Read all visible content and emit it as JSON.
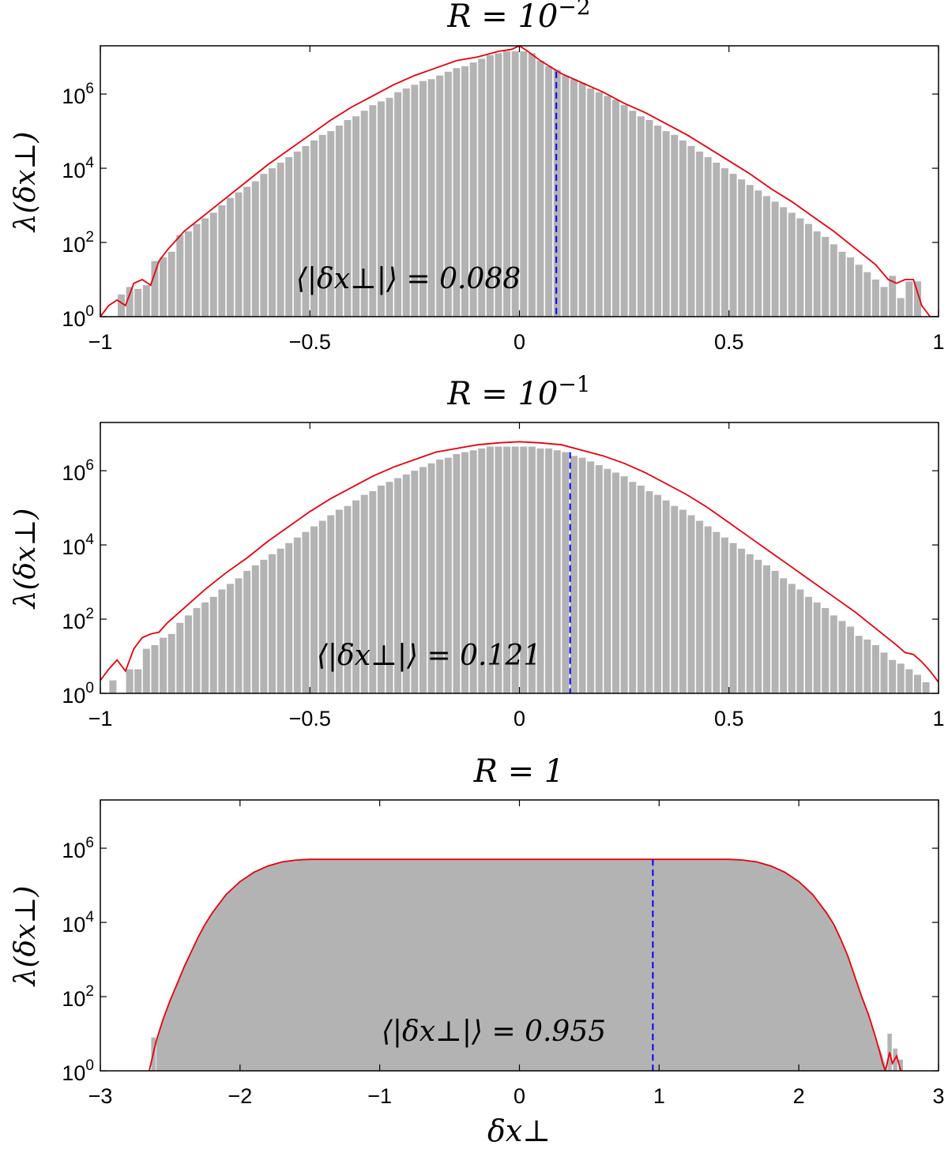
{
  "figure": {
    "xlabel": "δx⊥"
  },
  "chart_data": [
    {
      "type": "bar",
      "title": "R = 10⁻²",
      "title_prefix": "R = 10",
      "title_exp": "−2",
      "ylabel": "λ(δx⊥)",
      "yscale": "log",
      "xlim": [
        -1,
        1
      ],
      "ylim_log10": [
        0,
        7.3
      ],
      "x_ticks": [
        "−1",
        "−0.5",
        "0",
        "0.5",
        "1"
      ],
      "x_tick_values": [
        -1,
        -0.5,
        0,
        0.5,
        1
      ],
      "y_ticks": [
        {
          "base": "10",
          "exp": "0",
          "value": 1
        },
        {
          "base": "10",
          "exp": "2",
          "value": 100
        },
        {
          "base": "10",
          "exp": "4",
          "value": 10000
        },
        {
          "base": "10",
          "exp": "6",
          "value": 1000000
        }
      ],
      "annotation": "⟨|δx⊥|⟩ = 0.088",
      "annotation_value": 0.088,
      "mean_line_x": 0.088,
      "mean_line_top_log10": 6.6,
      "series": [
        {
          "name": "histogram",
          "kind": "bars",
          "color": "#b3b3b3",
          "bin_width": 0.02,
          "x": [
            -0.95,
            -0.93,
            -0.91,
            -0.89,
            -0.87,
            -0.85,
            -0.83,
            -0.81,
            -0.79,
            -0.77,
            -0.75,
            -0.73,
            -0.71,
            -0.69,
            -0.67,
            -0.65,
            -0.63,
            -0.61,
            -0.59,
            -0.57,
            -0.55,
            -0.53,
            -0.51,
            -0.49,
            -0.47,
            -0.45,
            -0.43,
            -0.41,
            -0.39,
            -0.37,
            -0.35,
            -0.33,
            -0.31,
            -0.29,
            -0.27,
            -0.25,
            -0.23,
            -0.21,
            -0.19,
            -0.17,
            -0.15,
            -0.13,
            -0.11,
            -0.09,
            -0.07,
            -0.05,
            -0.03,
            -0.01,
            0.01,
            0.03,
            0.05,
            0.07,
            0.09,
            0.11,
            0.13,
            0.15,
            0.17,
            0.19,
            0.21,
            0.23,
            0.25,
            0.27,
            0.29,
            0.31,
            0.33,
            0.35,
            0.37,
            0.39,
            0.41,
            0.43,
            0.45,
            0.47,
            0.49,
            0.51,
            0.53,
            0.55,
            0.57,
            0.59,
            0.61,
            0.63,
            0.65,
            0.67,
            0.69,
            0.71,
            0.73,
            0.75,
            0.77,
            0.79,
            0.81,
            0.83,
            0.85,
            0.87,
            0.89,
            0.91,
            0.93,
            0.95
          ],
          "log10_values": [
            0.6,
            0.8,
            0.75,
            0.85,
            1.5,
            1.6,
            1.75,
            2.2,
            2.3,
            2.5,
            2.65,
            2.8,
            3.0,
            3.2,
            3.35,
            3.5,
            3.65,
            3.85,
            4.0,
            4.15,
            4.3,
            4.45,
            4.6,
            4.75,
            4.9,
            5.0,
            5.15,
            5.3,
            5.4,
            5.55,
            5.7,
            5.8,
            5.9,
            6.05,
            6.15,
            6.25,
            6.35,
            6.4,
            6.5,
            6.6,
            6.7,
            6.75,
            6.85,
            6.95,
            7.05,
            7.1,
            7.15,
            7.15,
            7.15,
            7.1,
            6.9,
            6.75,
            6.65,
            6.5,
            6.4,
            6.3,
            6.15,
            6.05,
            5.95,
            5.85,
            5.7,
            5.55,
            5.4,
            5.3,
            5.15,
            5.0,
            4.9,
            4.75,
            4.6,
            4.45,
            4.3,
            4.15,
            4.0,
            3.85,
            3.7,
            3.55,
            3.4,
            3.25,
            3.1,
            2.95,
            2.8,
            2.65,
            2.5,
            2.3,
            2.15,
            1.95,
            1.75,
            1.6,
            1.4,
            1.2,
            1.0,
            0.8,
            1.1,
            0.5,
            0.95,
            0.95
          ]
        },
        {
          "name": "fit",
          "kind": "line",
          "color": "#e8000b",
          "x": [
            -1.0,
            -0.98,
            -0.96,
            -0.94,
            -0.92,
            -0.9,
            -0.88,
            -0.86,
            -0.84,
            -0.8,
            -0.75,
            -0.7,
            -0.65,
            -0.6,
            -0.55,
            -0.5,
            -0.45,
            -0.4,
            -0.35,
            -0.3,
            -0.25,
            -0.2,
            -0.15,
            -0.1,
            -0.05,
            -0.02,
            0.0,
            0.02,
            0.05,
            0.1,
            0.15,
            0.2,
            0.25,
            0.3,
            0.35,
            0.4,
            0.45,
            0.5,
            0.55,
            0.6,
            0.65,
            0.7,
            0.75,
            0.8,
            0.85,
            0.88,
            0.9,
            0.92,
            0.94,
            0.96,
            0.98,
            1.0
          ],
          "log10_values": [
            0.0,
            0.3,
            0.45,
            0.3,
            0.9,
            1.0,
            0.85,
            1.5,
            1.8,
            2.3,
            2.75,
            3.2,
            3.65,
            4.1,
            4.5,
            4.9,
            5.3,
            5.65,
            5.95,
            6.25,
            6.5,
            6.7,
            6.9,
            7.0,
            7.15,
            7.2,
            7.3,
            7.15,
            6.9,
            6.55,
            6.3,
            6.05,
            5.75,
            5.5,
            5.2,
            4.9,
            4.55,
            4.2,
            3.85,
            3.45,
            3.1,
            2.7,
            2.3,
            1.85,
            1.4,
            1.0,
            0.9,
            1.0,
            1.0,
            0.3,
            0.0,
            0.0
          ]
        }
      ]
    },
    {
      "type": "bar",
      "title": "R = 10⁻¹",
      "title_prefix": "R = 10",
      "title_exp": "−1",
      "ylabel": "λ(δx⊥)",
      "yscale": "log",
      "xlim": [
        -1,
        1
      ],
      "ylim_log10": [
        0,
        7.3
      ],
      "x_ticks": [
        "−1",
        "−0.5",
        "0",
        "0.5",
        "1"
      ],
      "x_tick_values": [
        -1,
        -0.5,
        0,
        0.5,
        1
      ],
      "y_ticks": [
        {
          "base": "10",
          "exp": "0",
          "value": 1
        },
        {
          "base": "10",
          "exp": "2",
          "value": 100
        },
        {
          "base": "10",
          "exp": "4",
          "value": 10000
        },
        {
          "base": "10",
          "exp": "6",
          "value": 1000000
        }
      ],
      "annotation": "⟨|δx⊥|⟩ = 0.121",
      "annotation_value": 0.121,
      "mean_line_x": 0.121,
      "mean_line_top_log10": 6.5,
      "series": [
        {
          "name": "histogram",
          "kind": "bars",
          "color": "#b3b3b3",
          "bin_width": 0.02,
          "x": [
            -0.97,
            -0.95,
            -0.93,
            -0.91,
            -0.89,
            -0.87,
            -0.85,
            -0.83,
            -0.81,
            -0.79,
            -0.77,
            -0.75,
            -0.73,
            -0.71,
            -0.69,
            -0.67,
            -0.65,
            -0.63,
            -0.61,
            -0.59,
            -0.57,
            -0.55,
            -0.53,
            -0.51,
            -0.49,
            -0.47,
            -0.45,
            -0.43,
            -0.41,
            -0.39,
            -0.37,
            -0.35,
            -0.33,
            -0.31,
            -0.29,
            -0.27,
            -0.25,
            -0.23,
            -0.21,
            -0.19,
            -0.17,
            -0.15,
            -0.13,
            -0.11,
            -0.09,
            -0.07,
            -0.05,
            -0.03,
            -0.01,
            0.01,
            0.03,
            0.05,
            0.07,
            0.09,
            0.11,
            0.13,
            0.15,
            0.17,
            0.19,
            0.21,
            0.23,
            0.25,
            0.27,
            0.29,
            0.31,
            0.33,
            0.35,
            0.37,
            0.39,
            0.41,
            0.43,
            0.45,
            0.47,
            0.49,
            0.51,
            0.53,
            0.55,
            0.57,
            0.59,
            0.61,
            0.63,
            0.65,
            0.67,
            0.69,
            0.71,
            0.73,
            0.75,
            0.77,
            0.79,
            0.81,
            0.83,
            0.85,
            0.87,
            0.89,
            0.91,
            0.93,
            0.95,
            0.97
          ],
          "log10_values": [
            0.35,
            0.0,
            0.65,
            0.65,
            1.2,
            1.3,
            1.5,
            1.6,
            1.9,
            2.1,
            2.3,
            2.45,
            2.6,
            2.8,
            2.95,
            3.1,
            3.3,
            3.45,
            3.6,
            3.75,
            3.9,
            4.05,
            4.2,
            4.35,
            4.5,
            4.65,
            4.8,
            4.95,
            5.05,
            5.2,
            5.35,
            5.45,
            5.6,
            5.7,
            5.8,
            5.9,
            6.0,
            6.1,
            6.2,
            6.3,
            6.35,
            6.45,
            6.5,
            6.55,
            6.6,
            6.65,
            6.65,
            6.65,
            6.65,
            6.65,
            6.65,
            6.6,
            6.6,
            6.55,
            6.5,
            6.4,
            6.35,
            6.25,
            6.15,
            6.05,
            5.95,
            5.85,
            5.7,
            5.6,
            5.45,
            5.35,
            5.2,
            5.05,
            4.95,
            4.8,
            4.65,
            4.5,
            4.35,
            4.2,
            4.05,
            3.9,
            3.75,
            3.6,
            3.45,
            3.3,
            3.1,
            2.95,
            2.8,
            2.6,
            2.45,
            2.3,
            2.1,
            1.95,
            1.8,
            1.55,
            1.45,
            1.3,
            1.1,
            0.9,
            0.8,
            0.65,
            0.5,
            0.3
          ]
        },
        {
          "name": "fit",
          "kind": "line",
          "color": "#e8000b",
          "x": [
            -1.0,
            -0.98,
            -0.96,
            -0.94,
            -0.92,
            -0.9,
            -0.88,
            -0.86,
            -0.84,
            -0.8,
            -0.75,
            -0.7,
            -0.65,
            -0.6,
            -0.55,
            -0.5,
            -0.45,
            -0.4,
            -0.35,
            -0.3,
            -0.25,
            -0.2,
            -0.15,
            -0.1,
            -0.05,
            0.0,
            0.05,
            0.1,
            0.15,
            0.2,
            0.25,
            0.3,
            0.35,
            0.4,
            0.45,
            0.5,
            0.55,
            0.6,
            0.65,
            0.7,
            0.75,
            0.8,
            0.85,
            0.9,
            0.92,
            0.94,
            0.96,
            0.98,
            1.0
          ],
          "log10_values": [
            0.35,
            0.65,
            0.9,
            0.6,
            1.2,
            1.5,
            1.6,
            1.65,
            1.9,
            2.3,
            2.8,
            3.25,
            3.65,
            4.1,
            4.5,
            4.9,
            5.25,
            5.55,
            5.85,
            6.1,
            6.3,
            6.5,
            6.6,
            6.7,
            6.75,
            6.78,
            6.75,
            6.7,
            6.55,
            6.4,
            6.2,
            5.95,
            5.65,
            5.35,
            5.0,
            4.6,
            4.2,
            3.8,
            3.4,
            3.0,
            2.6,
            2.2,
            1.75,
            1.3,
            1.1,
            1.05,
            0.85,
            0.6,
            0.3
          ]
        }
      ]
    },
    {
      "type": "area",
      "title": "R = 1",
      "title_prefix": "R = 1",
      "title_exp": "",
      "ylabel": "λ(δx⊥)",
      "xlabel": "δx⊥",
      "yscale": "log",
      "xlim": [
        -3,
        3
      ],
      "ylim_log10": [
        0,
        7.3
      ],
      "x_ticks": [
        "−3",
        "−2",
        "−1",
        "0",
        "1",
        "2",
        "3"
      ],
      "x_tick_values": [
        -3,
        -2,
        -1,
        0,
        1,
        2,
        3
      ],
      "y_ticks": [
        {
          "base": "10",
          "exp": "0",
          "value": 1
        },
        {
          "base": "10",
          "exp": "2",
          "value": 100
        },
        {
          "base": "10",
          "exp": "4",
          "value": 10000
        },
        {
          "base": "10",
          "exp": "6",
          "value": 1000000
        }
      ],
      "annotation": "⟨|δx⊥|⟩ = 0.955",
      "annotation_value": 0.955,
      "mean_line_x": 0.955,
      "mean_line_top_log10": 5.7,
      "series": [
        {
          "name": "histogram",
          "kind": "area",
          "color": "#b3b3b3",
          "x": [
            -2.6,
            -2.55,
            -2.5,
            -2.45,
            -2.4,
            -2.35,
            -2.3,
            -2.25,
            -2.2,
            -2.1,
            -2.0,
            -1.9,
            -1.8,
            -1.7,
            -1.6,
            -1.5,
            -1.4,
            1.4,
            1.5,
            1.6,
            1.7,
            1.8,
            1.9,
            2.0,
            2.1,
            2.2,
            2.25,
            2.3,
            2.35,
            2.4,
            2.45,
            2.5,
            2.55,
            2.6,
            2.63
          ],
          "log10_values": [
            0.8,
            1.4,
            1.9,
            2.35,
            2.8,
            3.2,
            3.6,
            3.95,
            4.25,
            4.75,
            5.1,
            5.35,
            5.52,
            5.63,
            5.68,
            5.7,
            5.7,
            5.7,
            5.7,
            5.68,
            5.63,
            5.52,
            5.35,
            5.1,
            4.75,
            4.25,
            3.95,
            3.55,
            3.1,
            2.55,
            2.0,
            1.5,
            0.9,
            0.4,
            0.0
          ]
        },
        {
          "name": "tail-bars",
          "kind": "bars",
          "color": "#b3b3b3",
          "bin_width": 0.04,
          "x": [
            -2.62,
            2.65,
            2.69,
            2.73
          ],
          "log10_values": [
            0.9,
            1.0,
            0.6,
            0.3
          ]
        },
        {
          "name": "fit",
          "kind": "line",
          "color": "#e8000b",
          "x": [
            -2.65,
            -2.6,
            -2.55,
            -2.5,
            -2.45,
            -2.4,
            -2.35,
            -2.3,
            -2.25,
            -2.2,
            -2.1,
            -2.0,
            -1.9,
            -1.8,
            -1.7,
            -1.6,
            -1.5,
            -1.4,
            0.0,
            1.4,
            1.5,
            1.6,
            1.7,
            1.8,
            1.9,
            2.0,
            2.1,
            2.2,
            2.25,
            2.3,
            2.35,
            2.4,
            2.45,
            2.5,
            2.55,
            2.58,
            2.6,
            2.62,
            2.65,
            2.67,
            2.7,
            2.73
          ],
          "log10_values": [
            0.0,
            0.8,
            1.4,
            1.9,
            2.35,
            2.8,
            3.2,
            3.6,
            3.95,
            4.25,
            4.75,
            5.1,
            5.35,
            5.52,
            5.63,
            5.68,
            5.7,
            5.7,
            5.7,
            5.7,
            5.7,
            5.68,
            5.63,
            5.52,
            5.35,
            5.1,
            4.75,
            4.25,
            3.95,
            3.55,
            3.1,
            2.55,
            2.0,
            1.5,
            0.9,
            0.5,
            0.2,
            0.0,
            0.5,
            0.2,
            0.4,
            0.0
          ]
        }
      ]
    }
  ]
}
